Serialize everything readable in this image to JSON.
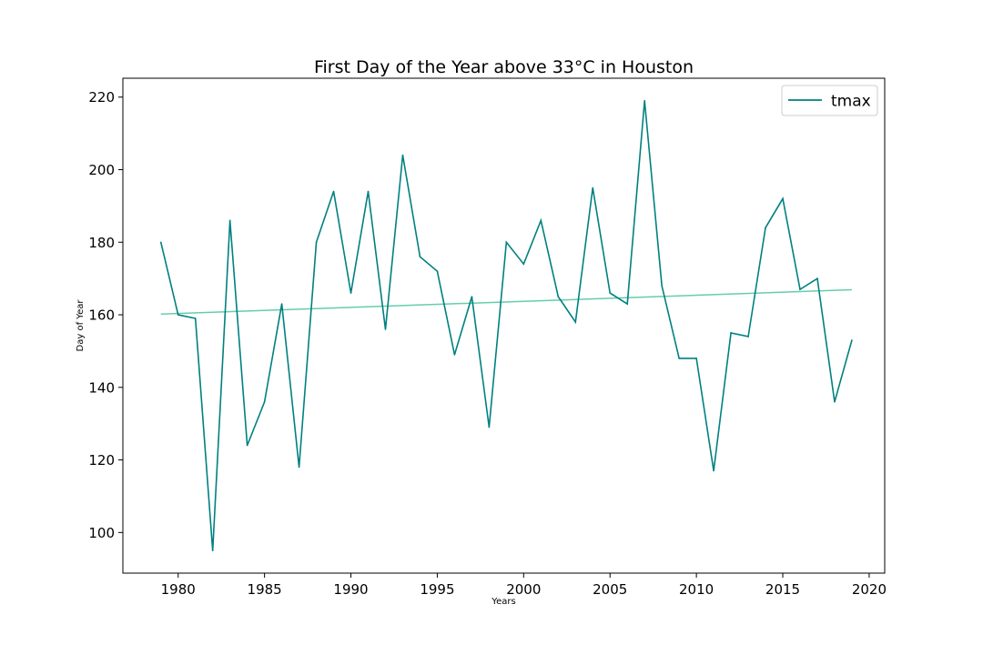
{
  "chart_data": {
    "type": "line",
    "title": "First Day of the Year above 33°C in Houston",
    "xlabel": "Years",
    "ylabel": "Day of Year",
    "xlim": [
      1976.8,
      2020.9
    ],
    "ylim": [
      88.8,
      225.2
    ],
    "x_ticks": [
      1980,
      1985,
      1990,
      1995,
      2000,
      2005,
      2010,
      2015,
      2020
    ],
    "y_ticks": [
      100,
      120,
      140,
      160,
      180,
      200,
      220
    ],
    "grid": false,
    "legend_position": "top-right",
    "series": [
      {
        "name": "tmax",
        "color": "#008080",
        "x": [
          1979,
          1980,
          1981,
          1982,
          1983,
          1984,
          1985,
          1986,
          1987,
          1988,
          1989,
          1990,
          1991,
          1992,
          1993,
          1994,
          1995,
          1996,
          1997,
          1998,
          1999,
          2000,
          2001,
          2002,
          2003,
          2004,
          2005,
          2006,
          2007,
          2008,
          2009,
          2010,
          2011,
          2012,
          2013,
          2014,
          2015,
          2016,
          2017,
          2018,
          2019
        ],
        "y": [
          180,
          160,
          159,
          95,
          186,
          124,
          136,
          163,
          118,
          180,
          194,
          166,
          194,
          156,
          204,
          176,
          172,
          149,
          165,
          129,
          180,
          174,
          186,
          165,
          158,
          195,
          166,
          163,
          219,
          168,
          148,
          148,
          117,
          155,
          154,
          184,
          192,
          167,
          170,
          136,
          153
        ]
      }
    ],
    "trend_line": {
      "color": "#66cdaa",
      "x": [
        1979,
        2019
      ],
      "y": [
        160.2,
        166.9
      ]
    }
  }
}
